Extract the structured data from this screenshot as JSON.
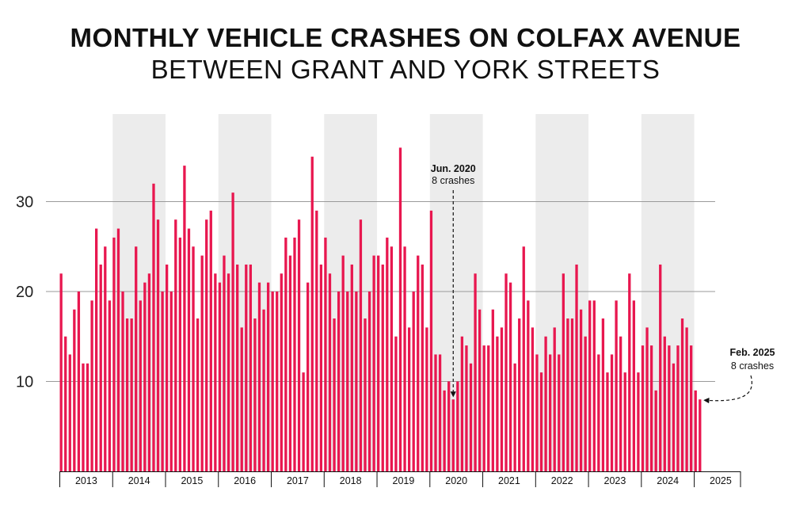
{
  "title": "MONTHLY VEHICLE CRASHES ON COLFAX AVENUE",
  "subtitle": "BETWEEN GRANT AND YORK STREETS",
  "chart_data": {
    "type": "bar",
    "title": "MONTHLY VEHICLE CRASHES ON COLFAX AVENUE",
    "subtitle": "BETWEEN GRANT AND YORK STREETS",
    "xlabel": "",
    "ylabel": "",
    "ylim": [
      0,
      38
    ],
    "yticks": [
      10,
      20,
      30
    ],
    "grid": true,
    "bar_color": "#e8174f",
    "shade_color": "#ececec",
    "start": "2013-01",
    "end": "2025-02",
    "year_labels": [
      "2013",
      "2014",
      "2015",
      "2016",
      "2017",
      "2018",
      "2019",
      "2020",
      "2021",
      "2022",
      "2023",
      "2024",
      "2025"
    ],
    "shaded_years": [
      "2014",
      "2016",
      "2018",
      "2020",
      "2022",
      "2024"
    ],
    "series": [
      {
        "values": [
          22,
          15,
          13,
          18,
          20,
          12,
          12,
          19,
          27,
          23,
          25,
          19,
          26,
          27,
          20,
          17,
          17,
          25,
          19,
          21,
          22,
          32,
          28,
          20,
          23,
          20,
          28,
          26,
          34,
          27,
          25,
          17,
          24,
          28,
          29,
          22,
          21,
          24,
          22,
          31,
          23,
          16,
          23,
          23,
          17,
          21,
          18,
          21,
          20,
          20,
          22,
          26,
          24,
          26,
          28,
          11,
          21,
          35,
          29,
          23,
          26,
          22,
          17,
          20,
          24,
          20,
          23,
          20,
          28,
          17,
          20,
          24,
          24,
          23,
          26,
          25,
          15,
          36,
          25,
          16,
          20,
          24,
          23,
          16,
          29,
          13,
          13,
          9,
          10,
          8,
          10,
          15,
          14,
          12,
          22,
          18,
          14,
          14,
          18,
          15,
          16,
          22,
          21,
          12,
          17,
          25,
          19,
          16,
          13,
          11,
          15,
          13,
          16,
          13,
          22,
          17,
          17,
          23,
          18,
          15,
          19,
          19,
          13,
          17,
          11,
          13,
          19,
          15,
          11,
          22,
          19,
          11,
          14,
          16,
          14,
          9,
          23,
          15,
          14,
          12,
          14,
          17,
          16,
          14,
          9,
          8
        ]
      }
    ],
    "annotations": [
      {
        "label": "Jun. 2020",
        "detail": "8 crashes",
        "month": "2020-06"
      },
      {
        "label": "Feb. 2025",
        "detail": "8 crashes",
        "month": "2025-02"
      }
    ]
  }
}
